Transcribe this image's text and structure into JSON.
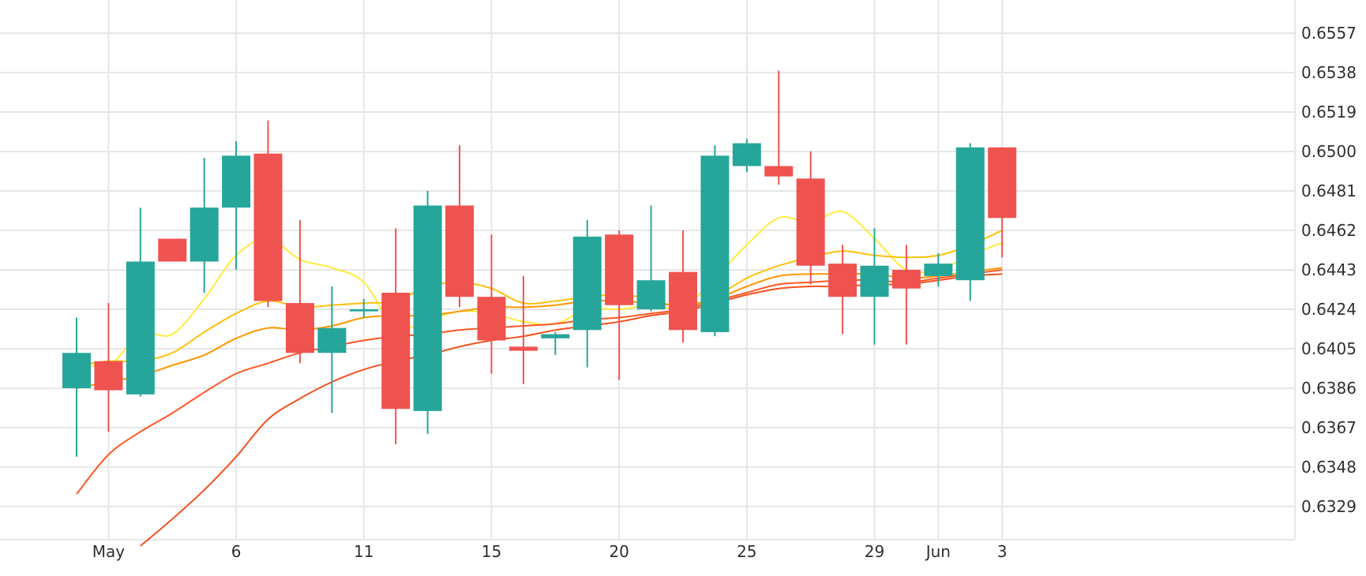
{
  "chart_data": {
    "type": "candlestick",
    "title": "",
    "xlabel": "",
    "ylabel": "",
    "ylim": [
      0.6313,
      0.6573
    ],
    "y_ticks": [
      "0.6557",
      "0.6538",
      "0.6519",
      "0.6500",
      "0.6481",
      "0.6462",
      "0.6443",
      "0.6424",
      "0.6405",
      "0.6386",
      "0.6367",
      "0.6348",
      "0.6329"
    ],
    "x_ticks": [
      {
        "label": "May",
        "index": 1
      },
      {
        "label": "6",
        "index": 5
      },
      {
        "label": "11",
        "index": 9
      },
      {
        "label": "15",
        "index": 13
      },
      {
        "label": "20",
        "index": 17
      },
      {
        "label": "25",
        "index": 21
      },
      {
        "label": "29",
        "index": 25
      },
      {
        "label": "Jun",
        "index": 27
      },
      {
        "label": "3",
        "index": 29
      }
    ],
    "colors": {
      "up": "#26a69a",
      "down": "#ef5350",
      "ma": [
        "#ffeb3b",
        "#ffc107",
        "#ff9800",
        "#ff5722",
        "#f4511e"
      ],
      "grid": "#e6e6e6"
    },
    "candles": [
      {
        "open": 0.6386,
        "high": 0.642,
        "low": 0.6353,
        "close": 0.6403
      },
      {
        "open": 0.6399,
        "high": 0.6427,
        "low": 0.6365,
        "close": 0.6385
      },
      {
        "open": 0.6383,
        "high": 0.6473,
        "low": 0.6382,
        "close": 0.6447
      },
      {
        "open": 0.6458,
        "high": 0.6458,
        "low": 0.6447,
        "close": 0.6447
      },
      {
        "open": 0.6447,
        "high": 0.6497,
        "low": 0.6432,
        "close": 0.6473
      },
      {
        "open": 0.6473,
        "high": 0.6505,
        "low": 0.6443,
        "close": 0.6498
      },
      {
        "open": 0.6499,
        "high": 0.6515,
        "low": 0.6425,
        "close": 0.6428
      },
      {
        "open": 0.6427,
        "high": 0.6467,
        "low": 0.6398,
        "close": 0.6403
      },
      {
        "open": 0.6403,
        "high": 0.6435,
        "low": 0.6374,
        "close": 0.6415
      },
      {
        "open": 0.6423,
        "high": 0.6429,
        "low": 0.642,
        "close": 0.6424
      },
      {
        "open": 0.6432,
        "high": 0.6463,
        "low": 0.6359,
        "close": 0.6376
      },
      {
        "open": 0.6375,
        "high": 0.6481,
        "low": 0.6364,
        "close": 0.6474
      },
      {
        "open": 0.6474,
        "high": 0.6503,
        "low": 0.6425,
        "close": 0.643
      },
      {
        "open": 0.643,
        "high": 0.646,
        "low": 0.6393,
        "close": 0.6409
      },
      {
        "open": 0.6406,
        "high": 0.644,
        "low": 0.6388,
        "close": 0.6404
      },
      {
        "open": 0.641,
        "high": 0.6413,
        "low": 0.6402,
        "close": 0.6412
      },
      {
        "open": 0.6414,
        "high": 0.6467,
        "low": 0.6396,
        "close": 0.6459
      },
      {
        "open": 0.646,
        "high": 0.6462,
        "low": 0.639,
        "close": 0.6426
      },
      {
        "open": 0.6424,
        "high": 0.6474,
        "low": 0.6423,
        "close": 0.6438
      },
      {
        "open": 0.6442,
        "high": 0.6462,
        "low": 0.6408,
        "close": 0.6414
      },
      {
        "open": 0.6413,
        "high": 0.6503,
        "low": 0.6411,
        "close": 0.6498
      },
      {
        "open": 0.6493,
        "high": 0.6506,
        "low": 0.649,
        "close": 0.6504
      },
      {
        "open": 0.6493,
        "high": 0.6539,
        "low": 0.6484,
        "close": 0.6488
      },
      {
        "open": 0.6487,
        "high": 0.65,
        "low": 0.6436,
        "close": 0.6445
      },
      {
        "open": 0.6446,
        "high": 0.6455,
        "low": 0.6412,
        "close": 0.643
      },
      {
        "open": 0.643,
        "high": 0.6463,
        "low": 0.6407,
        "close": 0.6445
      },
      {
        "open": 0.6443,
        "high": 0.6455,
        "low": 0.6407,
        "close": 0.6434
      },
      {
        "open": 0.644,
        "high": 0.6451,
        "low": 0.6435,
        "close": 0.6446
      },
      {
        "open": 0.6438,
        "high": 0.6504,
        "low": 0.6428,
        "close": 0.6502
      },
      {
        "open": 0.6502,
        "high": 0.6502,
        "low": 0.6449,
        "close": 0.6468
      }
    ],
    "moving_averages": [
      {
        "color": "#ffeb3b",
        "values": [
          0.6399,
          0.6397,
          0.6412,
          0.6412,
          0.6429,
          0.645,
          0.6458,
          0.6448,
          0.6444,
          0.6437,
          0.6415,
          0.6419,
          0.6423,
          0.6422,
          0.6418,
          0.6417,
          0.6424,
          0.6424,
          0.6426,
          0.6425,
          0.6439,
          0.6455,
          0.6468,
          0.6466,
          0.6471,
          0.6458,
          0.6443,
          0.6443,
          0.645,
          0.6456
        ]
      },
      {
        "color": "#ffc107",
        "values": null
      },
      {
        "color": "#ffc107",
        "values": [
          0.6397,
          0.6399,
          0.6399,
          0.6403,
          0.6413,
          0.6422,
          0.6428,
          0.6425,
          0.6426,
          0.6427,
          0.6428,
          0.6435,
          0.6437,
          0.6434,
          0.6427,
          0.6428,
          0.643,
          0.6431,
          0.6429,
          0.6425,
          0.643,
          0.6439,
          0.6445,
          0.6449,
          0.6452,
          0.645,
          0.6449,
          0.645,
          0.6455,
          0.6462
        ]
      },
      {
        "color": "#ff9800",
        "values": [
          0.6386,
          0.6389,
          0.6392,
          0.6397,
          0.6402,
          0.641,
          0.6415,
          0.6414,
          0.6416,
          0.642,
          0.6421,
          0.6421,
          0.6423,
          0.6425,
          0.6425,
          0.6426,
          0.6428,
          0.6428,
          0.6427,
          0.6426,
          0.6429,
          0.6435,
          0.644,
          0.6441,
          0.6441,
          0.6441,
          0.6439,
          0.644,
          0.6442,
          0.6444
        ]
      },
      {
        "color": "#ff5722",
        "values": [
          0.6335,
          0.6354,
          0.6365,
          0.6374,
          0.6384,
          0.6393,
          0.6398,
          0.6403,
          0.6406,
          0.6409,
          0.6411,
          0.6412,
          0.6414,
          0.6415,
          0.6416,
          0.6417,
          0.6419,
          0.642,
          0.6422,
          0.6424,
          0.6428,
          0.6432,
          0.6436,
          0.6437,
          0.6438,
          0.6438,
          0.6437,
          0.6439,
          0.6441,
          0.6443
        ]
      },
      {
        "color": "#f4511e",
        "values": [
          null,
          null,
          0.631,
          0.6323,
          0.6337,
          0.6353,
          0.6371,
          0.6381,
          0.6389,
          0.6395,
          0.6399,
          0.6402,
          0.6406,
          0.6409,
          0.6411,
          0.6414,
          0.6416,
          0.6418,
          0.6421,
          0.6423,
          0.6427,
          0.6431,
          0.6434,
          0.6435,
          0.6435,
          0.6436,
          0.6436,
          0.6438,
          0.644,
          0.6441
        ]
      }
    ]
  }
}
